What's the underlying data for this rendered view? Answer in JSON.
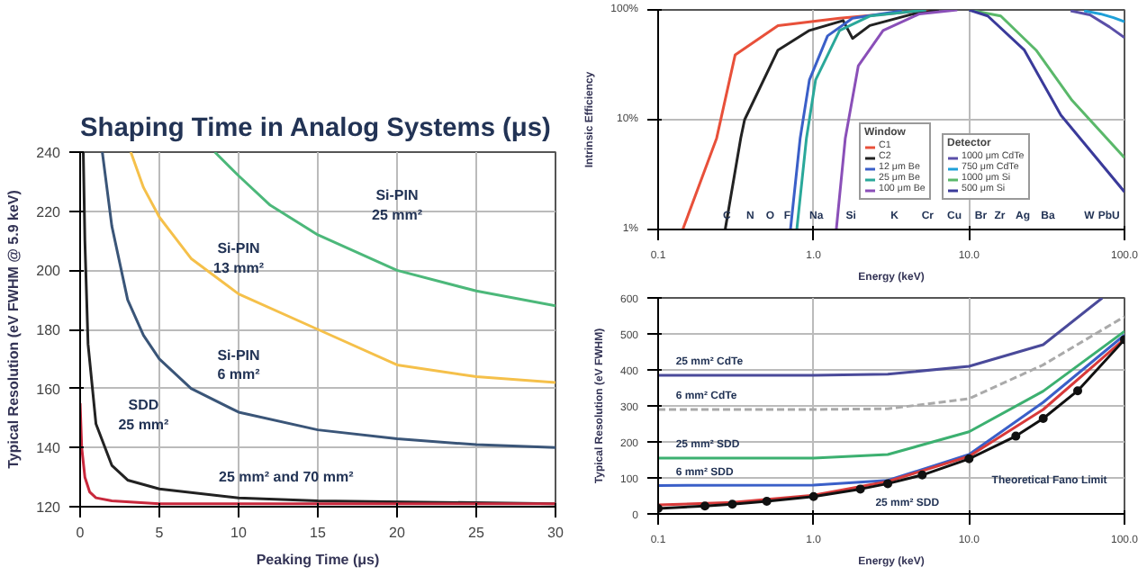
{
  "chart_data": [
    {
      "type": "line",
      "title": "Shaping Time in Analog Systems (μs)",
      "xlabel": "Peaking Time (μs)",
      "ylabel": "Typical Resolution (eV FWHM @ 5.9 keV)",
      "xlim": [
        0,
        30
      ],
      "ylim": [
        120,
        240
      ],
      "xticks": [
        0,
        5,
        10,
        15,
        20,
        25,
        30
      ],
      "yticks": [
        120,
        140,
        160,
        180,
        200,
        220,
        240
      ],
      "grid": true,
      "series": [
        {
          "color": "#4cb87a",
          "x": [
            8.5,
            10,
            12,
            15,
            20,
            25,
            30
          ],
          "values": [
            240,
            232,
            222,
            212,
            200,
            193,
            188
          ]
        },
        {
          "color": "#f5c04a",
          "x": [
            3.2,
            4,
            5,
            7,
            10,
            15,
            20,
            25,
            30
          ],
          "values": [
            240,
            228,
            218,
            204,
            192,
            180,
            168,
            164,
            162
          ]
        },
        {
          "color": "#3a5578",
          "x": [
            1.4,
            2,
            3,
            4,
            5,
            7,
            10,
            15,
            20,
            25,
            30
          ],
          "values": [
            240,
            215,
            190,
            178,
            170,
            160,
            152,
            146,
            143,
            141,
            140
          ]
        },
        {
          "color": "#222222",
          "x": [
            0.2,
            0.3,
            0.5,
            1,
            2,
            3,
            5,
            10,
            15,
            30
          ],
          "values": [
            240,
            210,
            175,
            148,
            134,
            129,
            126,
            123,
            122,
            121
          ]
        },
        {
          "color": "#c8283c",
          "x": [
            0,
            0.1,
            0.3,
            0.6,
            1,
            2,
            5,
            30
          ],
          "values": [
            155,
            140,
            130,
            125,
            123,
            122,
            121,
            121
          ]
        }
      ],
      "annotations": [
        "Si-PIN\n25 mm²",
        "Si-PIN\n13 mm²",
        "Si-PIN\n6 mm²",
        "SDD\n25 mm²",
        "25 mm² and 70 mm²"
      ]
    },
    {
      "type": "line",
      "xlabel": "Energy (keV)",
      "ylabel": "Intrinsic Efficiency",
      "log": "xy",
      "xlim": [
        0.1,
        100
      ],
      "ylim": [
        1,
        100
      ],
      "xticks": [
        {
          "value": 0.1,
          "label": "0.1"
        },
        {
          "value": 1,
          "label": "1.0"
        },
        {
          "value": 10,
          "label": "10.0"
        },
        {
          "value": 100,
          "label": "100.0"
        }
      ],
      "yticks": [
        {
          "value": 1,
          "label": "1%"
        },
        {
          "value": 10,
          "label": "10%"
        },
        {
          "value": 100,
          "label": "100%"
        }
      ],
      "grid": true,
      "legend": "bottom",
      "legend_title": "Window",
      "series": [
        {
          "name": "C1",
          "color": "#e8503a",
          "x": [
            0.144,
            0.238,
            0.313,
            0.59,
            1.47,
            5.8
          ],
          "values": [
            1,
            6.8,
            39,
            72,
            84,
            100
          ]
        },
        {
          "name": "C2",
          "color": "#222222",
          "x": [
            0.27,
            0.34,
            0.36,
            0.59,
            0.94,
            1.55,
            1.78,
            2.3,
            4.4,
            6.4
          ],
          "values": [
            1,
            6.8,
            10,
            43,
            65,
            80,
            55,
            72,
            92,
            100
          ]
        },
        {
          "name": "12 μm Be",
          "color": "#3a5fc8",
          "x": [
            0.71,
            0.82,
            0.94,
            1.23,
            1.78,
            3.7
          ],
          "values": [
            1,
            6.8,
            23,
            58,
            84,
            98
          ]
        },
        {
          "name": "25 μm Be",
          "color": "#2aa89a",
          "x": [
            0.78,
            0.9,
            1.03,
            1.47,
            2.3,
            5.3
          ],
          "values": [
            1,
            6.8,
            23,
            65,
            88,
            100
          ]
        },
        {
          "name": "100 μm Be",
          "color": "#8a4fb8",
          "x": [
            1.4,
            1.6,
            1.94,
            2.8,
            4.8,
            8.4
          ],
          "values": [
            1,
            6.8,
            31,
            65,
            92,
            100
          ]
        },
        {
          "name": "1000 μm CdTe",
          "color": "#5a4fa8",
          "x": [
            45,
            60,
            80,
            100
          ],
          "values": [
            98,
            90,
            70,
            56
          ]
        },
        {
          "name": "750 μm CdTe",
          "color": "#1fa0d8",
          "x": [
            55,
            70,
            85,
            100
          ],
          "values": [
            98,
            92,
            85,
            78
          ]
        },
        {
          "name": "1000 μm Si",
          "color": "#5ab86a",
          "x": [
            10,
            16,
            27,
            46,
            100
          ],
          "values": [
            100,
            88,
            43,
            15,
            4.5
          ]
        },
        {
          "name": "500 μm Si",
          "color": "#3a3a9a",
          "x": [
            10,
            13.2,
            22.7,
            39,
            100
          ],
          "values": [
            100,
            88,
            43,
            11,
            2.2
          ]
        }
      ],
      "annotations": [
        "Detector",
        "C",
        "N",
        "O",
        "F",
        "Na",
        "Si",
        "K",
        "Cr",
        "Cu",
        "Br",
        "Zr",
        "Ag",
        "Ba",
        "W",
        "Pb",
        "U"
      ]
    },
    {
      "type": "line",
      "xlabel": "Energy (keV)",
      "ylabel": "Typical Resolution (eV FWHM)",
      "log": "x",
      "xlim": [
        0.1,
        100
      ],
      "ylim": [
        0,
        600
      ],
      "xticks": [
        {
          "value": 0.1,
          "label": "0.1"
        },
        {
          "value": 1,
          "label": "1.0"
        },
        {
          "value": 10,
          "label": "10.0"
        },
        {
          "value": 100,
          "label": "100.0"
        }
      ],
      "yticks": [
        0,
        100,
        200,
        300,
        400,
        500,
        600
      ],
      "grid": true,
      "series": [
        {
          "color": "#4a4a9a",
          "x": [
            0.1,
            1,
            3,
            10,
            30,
            72
          ],
          "values": [
            385,
            385,
            388,
            410,
            470,
            600
          ]
        },
        {
          "color": "#aaaaaa",
          "line_style": "dashed",
          "x": [
            0.1,
            1,
            3,
            10,
            30,
            100
          ],
          "values": [
            290,
            290,
            292,
            320,
            414,
            548
          ]
        },
        {
          "color": "#3cb070",
          "x": [
            0.1,
            1,
            3,
            10,
            30,
            100
          ],
          "values": [
            155,
            155,
            165,
            228,
            341,
            507
          ]
        },
        {
          "color": "#3a5fc8",
          "x": [
            0.1,
            1,
            3,
            10,
            30,
            100
          ],
          "values": [
            79,
            80,
            93,
            165,
            310,
            497
          ]
        },
        {
          "color": "#d83a3a",
          "x": [
            0.1,
            0.3,
            1,
            3,
            10,
            30,
            100
          ],
          "values": [
            25,
            32,
            52,
            90,
            160,
            290,
            486
          ]
        },
        {
          "color": "#111111",
          "marker": "circle",
          "x": [
            0.1,
            0.2,
            0.3,
            0.5,
            1,
            2,
            3,
            5,
            10,
            20,
            30,
            50,
            100
          ],
          "values": [
            15,
            22,
            27,
            35,
            48,
            69,
            84,
            108,
            153,
            216,
            265,
            342,
            484
          ]
        }
      ],
      "annotations": [
        "25 mm² CdTe",
        "6 mm² CdTe",
        "25 mm² SDD",
        "6 mm² SDD",
        "25 mm² SDD",
        "Theoretical Fano Limit"
      ]
    }
  ]
}
